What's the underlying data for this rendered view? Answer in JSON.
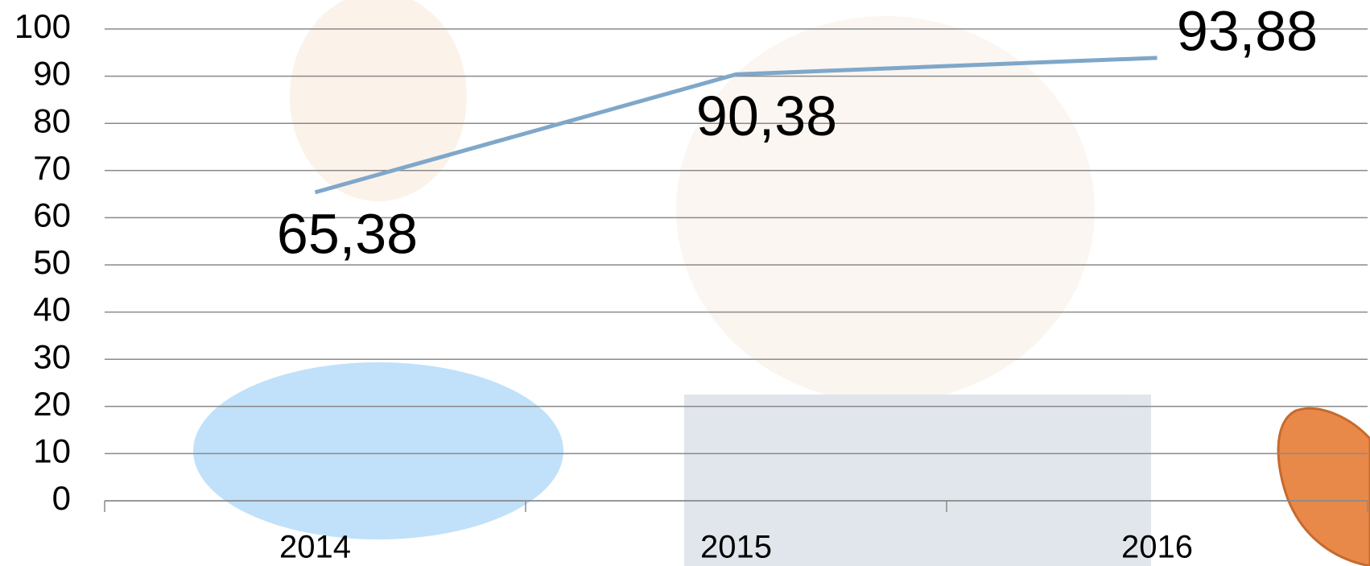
{
  "chart_data": {
    "type": "line",
    "categories": [
      "2014",
      "2015",
      "2016"
    ],
    "series": [
      {
        "color": "#7fa7c9",
        "values": [
          65.38,
          90.38,
          93.88
        ],
        "value_labels": [
          "65,38",
          "90,38",
          "93,88"
        ]
      }
    ],
    "ylim": [
      0,
      100
    ],
    "yticks": [
      0,
      10,
      20,
      30,
      40,
      50,
      60,
      70,
      80,
      90,
      100
    ],
    "grid": true
  }
}
